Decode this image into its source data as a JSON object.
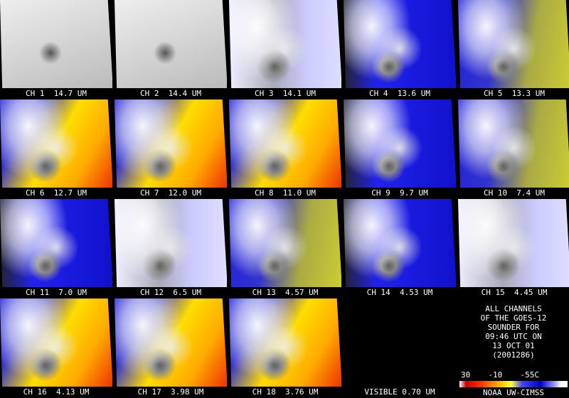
{
  "panels": [
    {
      "label": "CH 1  14.7 UM"
    },
    {
      "label": "CH 2  14.4 UM"
    },
    {
      "label": "CH 3  14.1 UM"
    },
    {
      "label": "CH 4  13.6 UM"
    },
    {
      "label": "CH 5  13.3 UM"
    },
    {
      "label": "CH 6  12.7 UM"
    },
    {
      "label": "CH 7  12.0 UM"
    },
    {
      "label": "CH 8  11.0 UM"
    },
    {
      "label": "CH 9  9.7 UM"
    },
    {
      "label": "CH 10  7.4 UM"
    },
    {
      "label": "CH 11  7.0 UM"
    },
    {
      "label": "CH 12  6.5 UM"
    },
    {
      "label": "CH 13  4.57 UM"
    },
    {
      "label": "CH 14  4.53 UM"
    },
    {
      "label": "CH 15  4.45 UM"
    },
    {
      "label": "CH 16  4.13 UM"
    },
    {
      "label": "CH 17  3.98 UM"
    },
    {
      "label": "CH 18  3.76 UM"
    },
    {
      "label": "VISIBLE 0.70 UM"
    }
  ],
  "info_lines": [
    "ALL CHANNELS",
    "OF THE GOES-12",
    "SOUNDER FOR",
    "09:46 UTC ON",
    "13 OCT 01",
    "(2001286)"
  ],
  "colorbar_labels": [
    "30",
    "-10",
    "-55C"
  ],
  "credit": "NOAA UW-CIMSS"
}
